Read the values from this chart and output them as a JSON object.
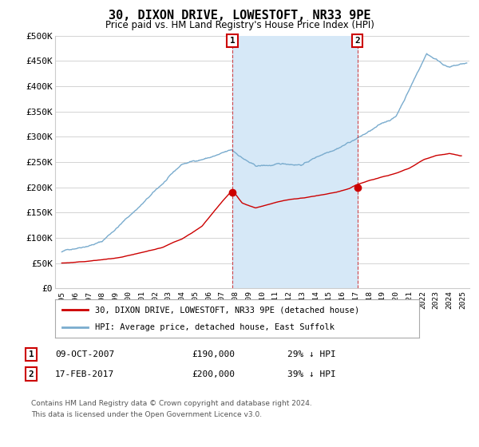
{
  "title": "30, DIXON DRIVE, LOWESTOFT, NR33 9PE",
  "subtitle": "Price paid vs. HM Land Registry's House Price Index (HPI)",
  "ylim": [
    0,
    500000
  ],
  "yticks": [
    0,
    50000,
    100000,
    150000,
    200000,
    250000,
    300000,
    350000,
    400000,
    450000,
    500000
  ],
  "ytick_labels": [
    "£0",
    "£50K",
    "£100K",
    "£150K",
    "£200K",
    "£250K",
    "£300K",
    "£350K",
    "£400K",
    "£450K",
    "£500K"
  ],
  "xlim": [
    1994.5,
    2025.5
  ],
  "xtick_years": [
    1995,
    1996,
    1997,
    1998,
    1999,
    2000,
    2001,
    2002,
    2003,
    2004,
    2005,
    2006,
    2007,
    2008,
    2009,
    2010,
    2011,
    2012,
    2013,
    2014,
    2015,
    2016,
    2017,
    2018,
    2019,
    2020,
    2021,
    2022,
    2023,
    2024,
    2025
  ],
  "plot_bg_color": "#ffffff",
  "fig_bg_color": "#ffffff",
  "grid_color": "#cccccc",
  "shade_color": "#d6e8f7",
  "red_color": "#cc0000",
  "blue_color": "#7aacce",
  "marker1_x": 2007.77,
  "marker1_y": 190000,
  "marker2_x": 2017.12,
  "marker2_y": 200000,
  "legend_red": "30, DIXON DRIVE, LOWESTOFT, NR33 9PE (detached house)",
  "legend_blue": "HPI: Average price, detached house, East Suffolk",
  "annot1_num": "1",
  "annot1_date": "09-OCT-2007",
  "annot1_price": "£190,000",
  "annot1_hpi": "29% ↓ HPI",
  "annot2_num": "2",
  "annot2_date": "17-FEB-2017",
  "annot2_price": "£200,000",
  "annot2_hpi": "39% ↓ HPI",
  "footnote_line1": "Contains HM Land Registry data © Crown copyright and database right 2024.",
  "footnote_line2": "This data is licensed under the Open Government Licence v3.0."
}
